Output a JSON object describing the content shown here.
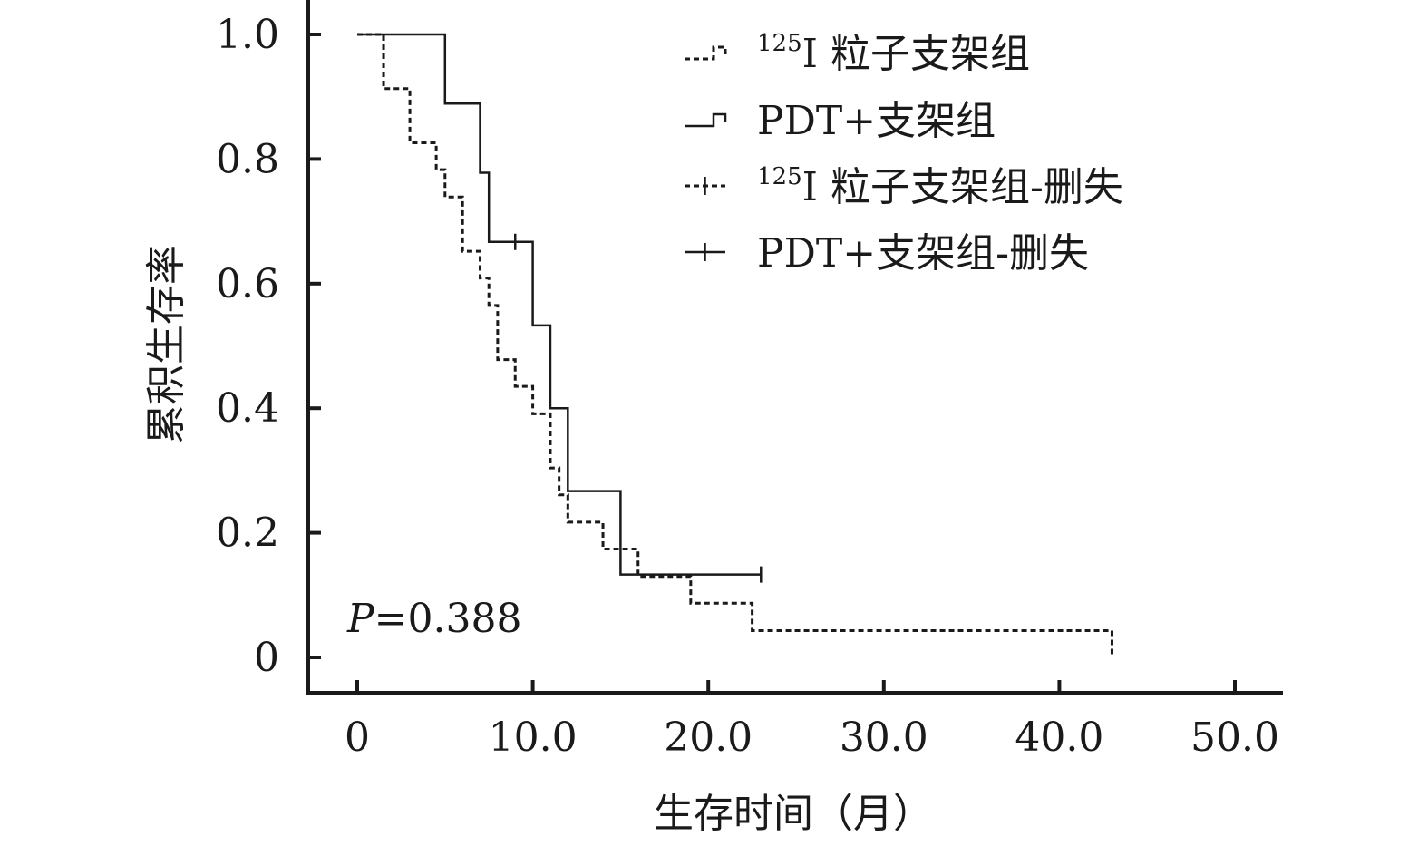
{
  "chart_data": {
    "type": "line",
    "subtype": "kaplan-meier-step",
    "xlabel": "生存时间（月）",
    "ylabel": "累积生存率",
    "xlim": [
      0,
      50
    ],
    "ylim": [
      0,
      1.0
    ],
    "x_ticks": [
      0,
      10,
      20,
      30,
      40,
      50
    ],
    "x_tick_labels": [
      "0",
      "10.0",
      "20.0",
      "30.0",
      "40.0",
      "50.0"
    ],
    "y_ticks": [
      0,
      0.2,
      0.4,
      0.6,
      0.8,
      1.0
    ],
    "y_tick_labels": [
      "0",
      "0.2",
      "0.4",
      "0.6",
      "0.8",
      "1.0"
    ],
    "grid": false,
    "legend_position": "top-right",
    "annotation": {
      "italic": "P",
      "rest": "=0.388"
    },
    "series": [
      {
        "name_sup": "125",
        "name_main": "I 粒子支架组",
        "style": "dashed",
        "x": [
          0,
          1.5,
          3,
          4.5,
          5,
          6,
          7,
          7.5,
          8,
          9,
          10,
          11,
          11.5,
          12,
          14,
          16,
          19,
          22.5,
          43
        ],
        "y": [
          1.0,
          0.913,
          0.826,
          0.783,
          0.739,
          0.652,
          0.609,
          0.565,
          0.478,
          0.435,
          0.391,
          0.304,
          0.261,
          0.217,
          0.174,
          0.13,
          0.087,
          0.043,
          0.0
        ],
        "end_x": 43
      },
      {
        "name_main": "PDT+支架组",
        "style": "solid",
        "x": [
          0,
          5,
          7,
          7.5,
          10,
          11,
          12,
          15
        ],
        "y": [
          1.0,
          0.889,
          0.778,
          0.667,
          0.533,
          0.4,
          0.267,
          0.133
        ],
        "end_x": 23,
        "censored": [
          {
            "x": 9,
            "y": 0.667
          },
          {
            "x": 23,
            "y": 0.133
          }
        ]
      }
    ],
    "legend_entries": [
      {
        "sup": "125",
        "text": "I 粒子支架组",
        "sym": "dashed-step"
      },
      {
        "sup": "",
        "text": "PDT+支架组",
        "sym": "solid-step"
      },
      {
        "sup": "125",
        "text": "I 粒子支架组-删失",
        "sym": "dashed-cross"
      },
      {
        "sup": "",
        "text": "PDT+支架组-删失",
        "sym": "solid-cross"
      }
    ]
  }
}
